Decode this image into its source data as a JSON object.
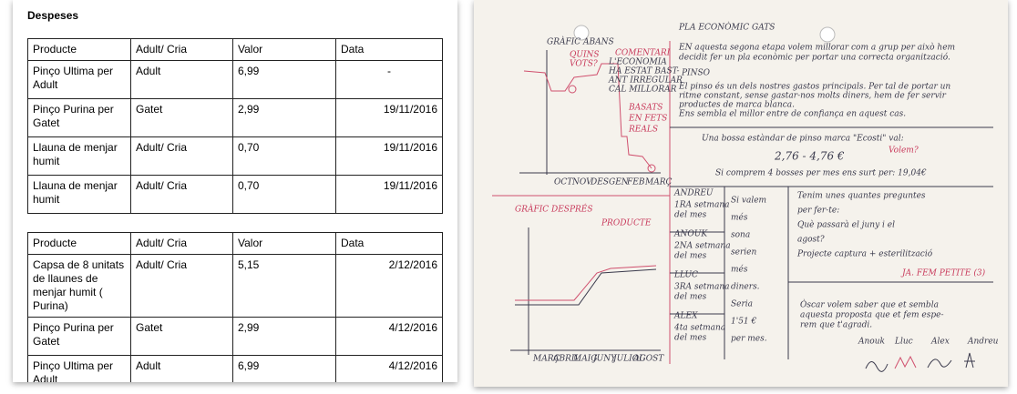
{
  "document": {
    "title": "Despeses",
    "tables": [
      {
        "header": [
          "Producte",
          "Adult/ Cria",
          "Valor",
          "Data"
        ],
        "rows": [
          [
            "Pinço Ultima per Adult",
            "Adult",
            "6,99",
            "-"
          ],
          [
            "Pinço Purina per Gatet",
            "Gatet",
            "2,99",
            "19/11/2016"
          ],
          [
            "Llauna de menjar humit",
            "Adult/ Cria",
            "0,70",
            "19/11/2016"
          ],
          [
            "Llauna de menjar humit",
            "Adult/ Cria",
            "0,70",
            "19/11/2016"
          ]
        ]
      },
      {
        "header": [
          "Producte",
          "Adult/ Cria",
          "Valor",
          "Data"
        ],
        "rows": [
          [
            "Capsa de 8 unitats de llaunes de menjar humit ( Purina)",
            "Adult/ Cria",
            "5,15",
            "2/12/2016"
          ],
          [
            "Pinço Purina per Gatet",
            "Gatet",
            "2,99",
            "4/12/2016"
          ],
          [
            "Pinço Ultima per Adult",
            "Adult",
            "6,99",
            "4/12/2016"
          ]
        ]
      }
    ]
  },
  "notebook": {
    "title": "PLA ECONÒMIC GATS",
    "before_title": "GRÀFIC ABANS",
    "before_notes": [
      "QUINS",
      "VOTS?",
      "COMENTARI",
      "L'ECONOMIA",
      "HA ESTAT BAST-",
      "ANT IRREGULAR",
      "CAL MILLORAR",
      "BASATS",
      "EN FETS",
      "REALS"
    ],
    "before_months": [
      "OCT",
      "NOV",
      "DES",
      "GEN",
      "FEB",
      "MARÇ"
    ],
    "after_title": "GRÀFIC DESPRÉS",
    "after_note": "PRODUCTE",
    "after_months": [
      "MARÇ",
      "ABRIL",
      "MAIG",
      "JUNY",
      "JULIOL",
      "AGOST"
    ],
    "intro": [
      "EN aquesta segona etapa volem millorar com a grup per això hem",
      "decidit fer un pla econòmic per portar una correcta organització."
    ],
    "pinso_title": "PINSO",
    "pinso_text": [
      "El pinso és un dels nostres gastos principals. Per tal de portar un",
      "ritme constant, sense gastar-nos molts diners, hem de fer servir",
      "productes de marca blanca.",
      "Ens sembla el millor entre de confiança en aquest cas."
    ],
    "bag": [
      "Una bossa estàndar de pinso marca \"Ecosti\" val:",
      "2,76 - 4,76 €",
      "Si comprem 4 bosses per mes ens surt per: 19,04€"
    ],
    "bag_note": "Volem?",
    "weeks": [
      {
        "name": "ANDREU",
        "text": [
          "1RA setmana",
          "del mes"
        ]
      },
      {
        "name": "ANOUK",
        "text": [
          "2NA setmana",
          "del mes"
        ]
      },
      {
        "name": "LLUC",
        "text": [
          "3RA setmana",
          "del mes"
        ]
      },
      {
        "name": "ALEX",
        "text": [
          "4ta setmana",
          "del mes"
        ]
      }
    ],
    "worth": [
      "Si valem",
      "més",
      "sona",
      "serien",
      "més",
      "diners.",
      "Seria",
      "1'51 €",
      "per mes."
    ],
    "questions": [
      "Tenim unes quantes preguntes",
      "per fer-te:",
      "Què passarà el juny i el",
      "agost?",
      "Projecte captura + esterilització"
    ],
    "answer": "JA. FEM PETITE (3)",
    "closing": [
      "Òscar volem saber que et sembla",
      "aquesta proposta que et fem espe-",
      "rem que t'agradi."
    ],
    "signers": [
      "Anouk",
      "Lluc",
      "Alex",
      "Andreu"
    ]
  }
}
